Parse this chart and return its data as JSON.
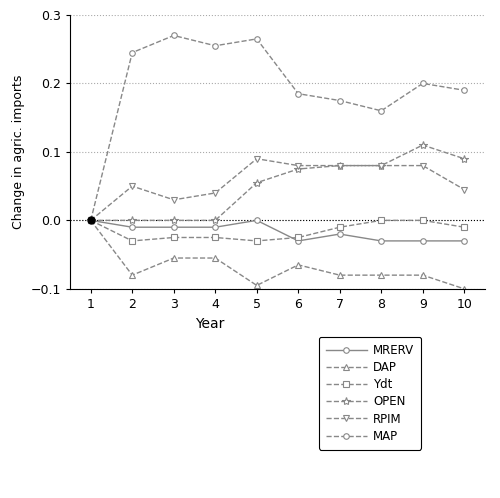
{
  "years": [
    1,
    2,
    3,
    4,
    5,
    6,
    7,
    8,
    9,
    10
  ],
  "MRERV": [
    0.0,
    -0.01,
    -0.01,
    -0.01,
    0.0,
    -0.03,
    -0.02,
    -0.03,
    -0.03,
    -0.03
  ],
  "DAP": [
    0.0,
    -0.08,
    -0.055,
    -0.055,
    -0.095,
    -0.065,
    -0.08,
    -0.08,
    -0.08,
    -0.1
  ],
  "Ydt": [
    0.0,
    -0.03,
    -0.025,
    -0.025,
    -0.03,
    -0.025,
    -0.01,
    0.0,
    0.0,
    -0.01
  ],
  "OPEN": [
    0.0,
    0.0,
    0.0,
    0.0,
    0.055,
    0.075,
    0.08,
    0.08,
    0.11,
    0.09
  ],
  "RPIM": [
    0.0,
    0.05,
    0.03,
    0.04,
    0.09,
    0.08,
    0.08,
    0.08,
    0.08,
    0.045
  ],
  "MAP": [
    0.0,
    0.245,
    0.27,
    0.255,
    0.265,
    0.185,
    0.175,
    0.16,
    0.2,
    0.19
  ],
  "xlabel": "Year",
  "ylabel": "Change in agric. imports",
  "ylim": [
    -0.1,
    0.3
  ],
  "yticks": [
    -0.1,
    0.0,
    0.1,
    0.2,
    0.3
  ],
  "xlim": [
    0.5,
    10.5
  ],
  "line_color": "#888888",
  "grid_color": "#aaaaaa",
  "bg_color": "#ffffff",
  "series": [
    {
      "name": "MRERV",
      "linestyle": "-",
      "marker": "o",
      "markersize": 4,
      "linewidth": 1.0
    },
    {
      "name": "DAP",
      "linestyle": "--",
      "marker": "^",
      "markersize": 4,
      "linewidth": 1.0
    },
    {
      "name": "Ydt",
      "linestyle": "--",
      "marker": "s",
      "markersize": 4,
      "linewidth": 1.0
    },
    {
      "name": "OPEN",
      "linestyle": "--",
      "marker": "*",
      "markersize": 6,
      "linewidth": 1.0
    },
    {
      "name": "RPIM",
      "linestyle": "--",
      "marker": "v",
      "markersize": 4,
      "linewidth": 1.0
    },
    {
      "name": "MAP",
      "linestyle": "--",
      "marker": "o",
      "markersize": 4,
      "linewidth": 1.0
    }
  ]
}
